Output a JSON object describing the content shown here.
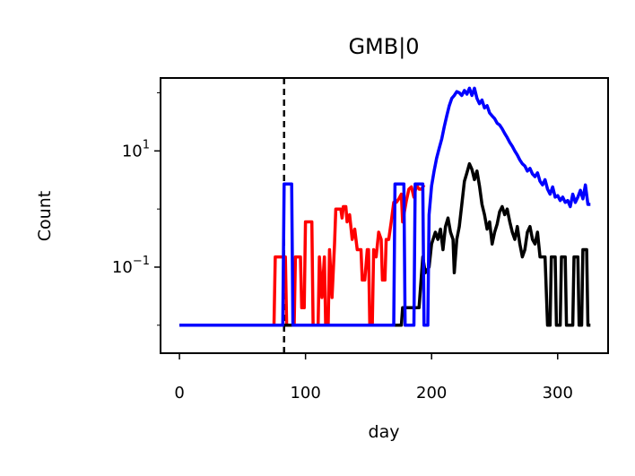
{
  "chart_data": {
    "type": "line",
    "title": "GMB|0",
    "xlabel": "day",
    "ylabel": "Count",
    "xlim": [
      -15,
      340
    ],
    "yscale": "log",
    "ylim": [
      0.0033,
      180
    ],
    "xticks": [
      0,
      100,
      200,
      300
    ],
    "xtick_labels": [
      "0",
      "100",
      "200",
      "300"
    ],
    "yticks": [
      10,
      0.1
    ],
    "ytick_labels": [
      {
        "base": "10",
        "exp": "1"
      },
      {
        "base": "10",
        "exp": "−1"
      }
    ],
    "grid": false,
    "legend": "none",
    "vline": {
      "x": 83,
      "color": "#000000",
      "style": "dashed"
    },
    "series": [
      {
        "color": "#ff0000",
        "points": [
          [
            0,
            0.01
          ],
          [
            75,
            0.01
          ],
          [
            76,
            0.15
          ],
          [
            84,
            0.15
          ],
          [
            85,
            0.01
          ],
          [
            91,
            0.01
          ],
          [
            92,
            0.15
          ],
          [
            96,
            0.15
          ],
          [
            97,
            0.02
          ],
          [
            99,
            0.02
          ],
          [
            100,
            0.6
          ],
          [
            105,
            0.6
          ],
          [
            106,
            0.01
          ],
          [
            110,
            0.01
          ],
          [
            111,
            0.15
          ],
          [
            113,
            0.03
          ],
          [
            115,
            0.15
          ],
          [
            116,
            0.01
          ],
          [
            118,
            0.01
          ],
          [
            119,
            0.2
          ],
          [
            121,
            0.03
          ],
          [
            123,
            0.25
          ],
          [
            124,
            1.0
          ],
          [
            128,
            1.0
          ],
          [
            129,
            0.7
          ],
          [
            130,
            1.1
          ],
          [
            132,
            1.1
          ],
          [
            133,
            0.6
          ],
          [
            135,
            0.8
          ],
          [
            137,
            0.3
          ],
          [
            139,
            0.45
          ],
          [
            141,
            0.2
          ],
          [
            144,
            0.2
          ],
          [
            145,
            0.06
          ],
          [
            147,
            0.06
          ],
          [
            149,
            0.2
          ],
          [
            150,
            0.2
          ],
          [
            151,
            0.01
          ],
          [
            153,
            0.01
          ],
          [
            154,
            0.2
          ],
          [
            156,
            0.15
          ],
          [
            158,
            0.4
          ],
          [
            160,
            0.3
          ],
          [
            161,
            0.06
          ],
          [
            163,
            0.06
          ],
          [
            164,
            0.3
          ],
          [
            166,
            0.3
          ],
          [
            168,
            0.6
          ],
          [
            170,
            1.3
          ],
          [
            172,
            1.3
          ],
          [
            174,
            1.5
          ],
          [
            176,
            1.8
          ],
          [
            177,
            0.6
          ],
          [
            180,
            1.4
          ],
          [
            182,
            2.2
          ],
          [
            184,
            2.4
          ],
          [
            186,
            1.6
          ],
          [
            188,
            2.6
          ],
          [
            190,
            2.2
          ],
          [
            192,
            2.2
          ],
          [
            194,
            2.6
          ]
        ]
      },
      {
        "color": "#000000",
        "points": [
          [
            0,
            0.01
          ],
          [
            176,
            0.01
          ],
          [
            177,
            0.02
          ],
          [
            190,
            0.02
          ],
          [
            193,
            0.15
          ],
          [
            195,
            0.08
          ],
          [
            198,
            0.1
          ],
          [
            200,
            0.25
          ],
          [
            203,
            0.4
          ],
          [
            205,
            0.3
          ],
          [
            207,
            0.45
          ],
          [
            209,
            0.2
          ],
          [
            211,
            0.5
          ],
          [
            213,
            0.7
          ],
          [
            215,
            0.4
          ],
          [
            217,
            0.3
          ],
          [
            218,
            0.08
          ],
          [
            220,
            0.3
          ],
          [
            222,
            0.5
          ],
          [
            224,
            1.2
          ],
          [
            226,
            3.0
          ],
          [
            228,
            4.2
          ],
          [
            230,
            6.0
          ],
          [
            232,
            4.8
          ],
          [
            234,
            3.2
          ],
          [
            236,
            4.5
          ],
          [
            238,
            2.5
          ],
          [
            240,
            1.2
          ],
          [
            242,
            0.8
          ],
          [
            244,
            0.45
          ],
          [
            246,
            0.6
          ],
          [
            248,
            0.25
          ],
          [
            250,
            0.4
          ],
          [
            252,
            0.55
          ],
          [
            254,
            0.9
          ],
          [
            256,
            1.1
          ],
          [
            258,
            0.8
          ],
          [
            260,
            1.0
          ],
          [
            262,
            0.6
          ],
          [
            264,
            0.4
          ],
          [
            266,
            0.3
          ],
          [
            268,
            0.5
          ],
          [
            270,
            0.25
          ],
          [
            272,
            0.15
          ],
          [
            274,
            0.2
          ],
          [
            276,
            0.4
          ],
          [
            278,
            0.5
          ],
          [
            280,
            0.3
          ],
          [
            282,
            0.25
          ],
          [
            284,
            0.4
          ],
          [
            286,
            0.15
          ],
          [
            290,
            0.15
          ],
          [
            292,
            0.01
          ],
          [
            294,
            0.01
          ],
          [
            295,
            0.15
          ],
          [
            298,
            0.15
          ],
          [
            299,
            0.01
          ],
          [
            302,
            0.01
          ],
          [
            303,
            0.15
          ],
          [
            306,
            0.15
          ],
          [
            307,
            0.01
          ],
          [
            312,
            0.01
          ],
          [
            313,
            0.15
          ],
          [
            316,
            0.15
          ],
          [
            317,
            0.01
          ],
          [
            319,
            0.01
          ],
          [
            320,
            0.2
          ],
          [
            323,
            0.2
          ],
          [
            324,
            0.01
          ],
          [
            326,
            0.01
          ]
        ]
      },
      {
        "color": "#0000ff",
        "points": [
          [
            0,
            0.01
          ],
          [
            82,
            0.01
          ],
          [
            83,
            2.7
          ],
          [
            89,
            2.7
          ],
          [
            90,
            0.01
          ],
          [
            170,
            0.01
          ],
          [
            171,
            2.7
          ],
          [
            178,
            2.7
          ],
          [
            179,
            0.01
          ],
          [
            186,
            0.01
          ],
          [
            187,
            2.7
          ],
          [
            193,
            2.7
          ],
          [
            194,
            0.01
          ],
          [
            197,
            0.01
          ],
          [
            198,
            0.8
          ],
          [
            200,
            2.5
          ],
          [
            202,
            4.5
          ],
          [
            204,
            7.5
          ],
          [
            206,
            11
          ],
          [
            208,
            16
          ],
          [
            210,
            26
          ],
          [
            212,
            40
          ],
          [
            214,
            60
          ],
          [
            216,
            80
          ],
          [
            218,
            90
          ],
          [
            220,
            105
          ],
          [
            222,
            100
          ],
          [
            224,
            90
          ],
          [
            226,
            110
          ],
          [
            228,
            95
          ],
          [
            230,
            120
          ],
          [
            232,
            90
          ],
          [
            234,
            120
          ],
          [
            236,
            80
          ],
          [
            238,
            65
          ],
          [
            240,
            75
          ],
          [
            242,
            55
          ],
          [
            244,
            60
          ],
          [
            246,
            45
          ],
          [
            248,
            40
          ],
          [
            250,
            36
          ],
          [
            252,
            30
          ],
          [
            254,
            28
          ],
          [
            256,
            24
          ],
          [
            258,
            20
          ],
          [
            260,
            17
          ],
          [
            262,
            14
          ],
          [
            264,
            12
          ],
          [
            266,
            10
          ],
          [
            268,
            8.5
          ],
          [
            270,
            7
          ],
          [
            272,
            6
          ],
          [
            274,
            5.5
          ],
          [
            276,
            4.5
          ],
          [
            278,
            5
          ],
          [
            280,
            4
          ],
          [
            282,
            3.6
          ],
          [
            284,
            4.2
          ],
          [
            286,
            3
          ],
          [
            288,
            2.6
          ],
          [
            290,
            3.2
          ],
          [
            292,
            2.2
          ],
          [
            294,
            1.8
          ],
          [
            296,
            2.4
          ],
          [
            298,
            1.6
          ],
          [
            300,
            1.7
          ],
          [
            302,
            1.4
          ],
          [
            304,
            1.6
          ],
          [
            306,
            1.3
          ],
          [
            308,
            1.4
          ],
          [
            310,
            1.1
          ],
          [
            312,
            1.8
          ],
          [
            314,
            1.3
          ],
          [
            316,
            1.6
          ],
          [
            318,
            2.1
          ],
          [
            320,
            1.5
          ],
          [
            322,
            2.6
          ],
          [
            324,
            1.2
          ],
          [
            326,
            1.2
          ]
        ]
      }
    ]
  }
}
